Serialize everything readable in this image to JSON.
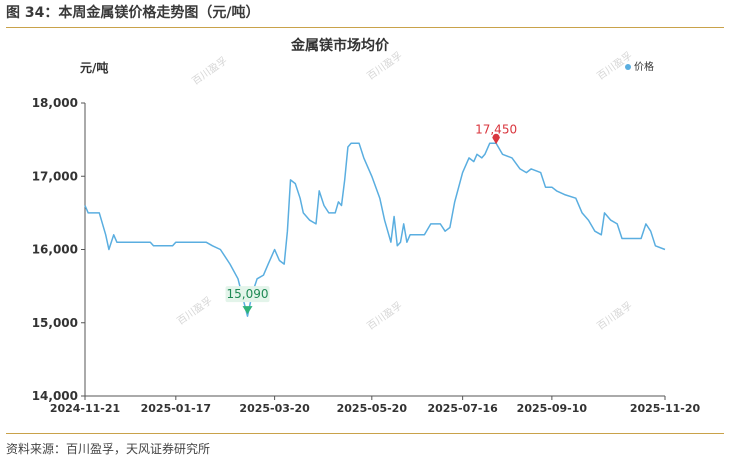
{
  "figure_caption": "图 34：本周金属镁价格走势图（元/吨）",
  "source_text": "资料来源：百川盈孚，天风证券研究所",
  "watermark": "百川盈孚",
  "chart_data": {
    "type": "line",
    "title": "金属镁市场均价",
    "ylabel": "元/吨",
    "xlabel": "",
    "legend": {
      "position": "top-right",
      "entries": [
        "价格"
      ]
    },
    "ylim": [
      14000,
      18000
    ],
    "yticks": [
      "14,000",
      "15,000",
      "16,000",
      "17,000",
      "18,000"
    ],
    "x_tick_labels": [
      "2024-11-21",
      "2025-01-17",
      "2025-03-20",
      "2025-05-20",
      "2025-07-16",
      "2025-09-10",
      "2025-11-20"
    ],
    "grid": false,
    "color": "#5aaee0",
    "annotations": [
      {
        "label": "17,450",
        "x": "2025-08-06",
        "y": 17450,
        "kind": "max",
        "color": "#d9363e"
      },
      {
        "label": "15,090",
        "x": "2025-03-03",
        "y": 15090,
        "kind": "min",
        "color": "#2fb37a"
      }
    ],
    "series": [
      {
        "name": "价格",
        "points": [
          [
            "2024-11-21",
            16600
          ],
          [
            "2024-11-23",
            16500
          ],
          [
            "2024-11-30",
            16500
          ],
          [
            "2024-12-04",
            16200
          ],
          [
            "2024-12-06",
            16000
          ],
          [
            "2024-12-09",
            16200
          ],
          [
            "2024-12-11",
            16100
          ],
          [
            "2025-01-01",
            16100
          ],
          [
            "2025-01-03",
            16050
          ],
          [
            "2025-01-15",
            16050
          ],
          [
            "2025-01-17",
            16100
          ],
          [
            "2025-02-05",
            16100
          ],
          [
            "2025-02-09",
            16050
          ],
          [
            "2025-02-14",
            16000
          ],
          [
            "2025-02-20",
            15800
          ],
          [
            "2025-02-25",
            15600
          ],
          [
            "2025-03-03",
            15090
          ],
          [
            "2025-03-06",
            15400
          ],
          [
            "2025-03-09",
            15600
          ],
          [
            "2025-03-13",
            15650
          ],
          [
            "2025-03-16",
            15800
          ],
          [
            "2025-03-18",
            15900
          ],
          [
            "2025-03-20",
            16000
          ],
          [
            "2025-03-23",
            15850
          ],
          [
            "2025-03-26",
            15800
          ],
          [
            "2025-03-28",
            16250
          ],
          [
            "2025-03-30",
            16950
          ],
          [
            "2025-04-02",
            16900
          ],
          [
            "2025-04-05",
            16700
          ],
          [
            "2025-04-07",
            16500
          ],
          [
            "2025-04-11",
            16400
          ],
          [
            "2025-04-15",
            16350
          ],
          [
            "2025-04-17",
            16800
          ],
          [
            "2025-04-20",
            16600
          ],
          [
            "2025-04-23",
            16500
          ],
          [
            "2025-04-27",
            16500
          ],
          [
            "2025-04-29",
            16650
          ],
          [
            "2025-05-01",
            16600
          ],
          [
            "2025-05-03",
            16950
          ],
          [
            "2025-05-05",
            17400
          ],
          [
            "2025-05-07",
            17450
          ],
          [
            "2025-05-12",
            17450
          ],
          [
            "2025-05-15",
            17250
          ],
          [
            "2025-05-20",
            17000
          ],
          [
            "2025-05-25",
            16700
          ],
          [
            "2025-05-28",
            16400
          ],
          [
            "2025-06-01",
            16100
          ],
          [
            "2025-06-03",
            16450
          ],
          [
            "2025-06-05",
            16050
          ],
          [
            "2025-06-07",
            16100
          ],
          [
            "2025-06-09",
            16350
          ],
          [
            "2025-06-11",
            16100
          ],
          [
            "2025-06-13",
            16200
          ],
          [
            "2025-06-22",
            16200
          ],
          [
            "2025-06-26",
            16350
          ],
          [
            "2025-07-02",
            16350
          ],
          [
            "2025-07-05",
            16250
          ],
          [
            "2025-07-08",
            16300
          ],
          [
            "2025-07-11",
            16650
          ],
          [
            "2025-07-16",
            17050
          ],
          [
            "2025-07-20",
            17250
          ],
          [
            "2025-07-23",
            17200
          ],
          [
            "2025-07-25",
            17300
          ],
          [
            "2025-07-28",
            17250
          ],
          [
            "2025-07-30",
            17300
          ],
          [
            "2025-08-02",
            17450
          ],
          [
            "2025-08-06",
            17450
          ],
          [
            "2025-08-10",
            17300
          ],
          [
            "2025-08-16",
            17250
          ],
          [
            "2025-08-21",
            17100
          ],
          [
            "2025-08-25",
            17050
          ],
          [
            "2025-08-28",
            17100
          ],
          [
            "2025-09-03",
            17050
          ],
          [
            "2025-09-06",
            16850
          ],
          [
            "2025-09-10",
            16850
          ],
          [
            "2025-09-13",
            16800
          ],
          [
            "2025-09-18",
            16750
          ],
          [
            "2025-09-25",
            16700
          ],
          [
            "2025-09-29",
            16500
          ],
          [
            "2025-10-03",
            16400
          ],
          [
            "2025-10-07",
            16250
          ],
          [
            "2025-10-11",
            16200
          ],
          [
            "2025-10-13",
            16500
          ],
          [
            "2025-10-17",
            16400
          ],
          [
            "2025-10-21",
            16350
          ],
          [
            "2025-10-24",
            16150
          ],
          [
            "2025-11-05",
            16150
          ],
          [
            "2025-11-08",
            16350
          ],
          [
            "2025-11-11",
            16250
          ],
          [
            "2025-11-14",
            16050
          ],
          [
            "2025-11-20",
            16000
          ]
        ]
      }
    ]
  }
}
